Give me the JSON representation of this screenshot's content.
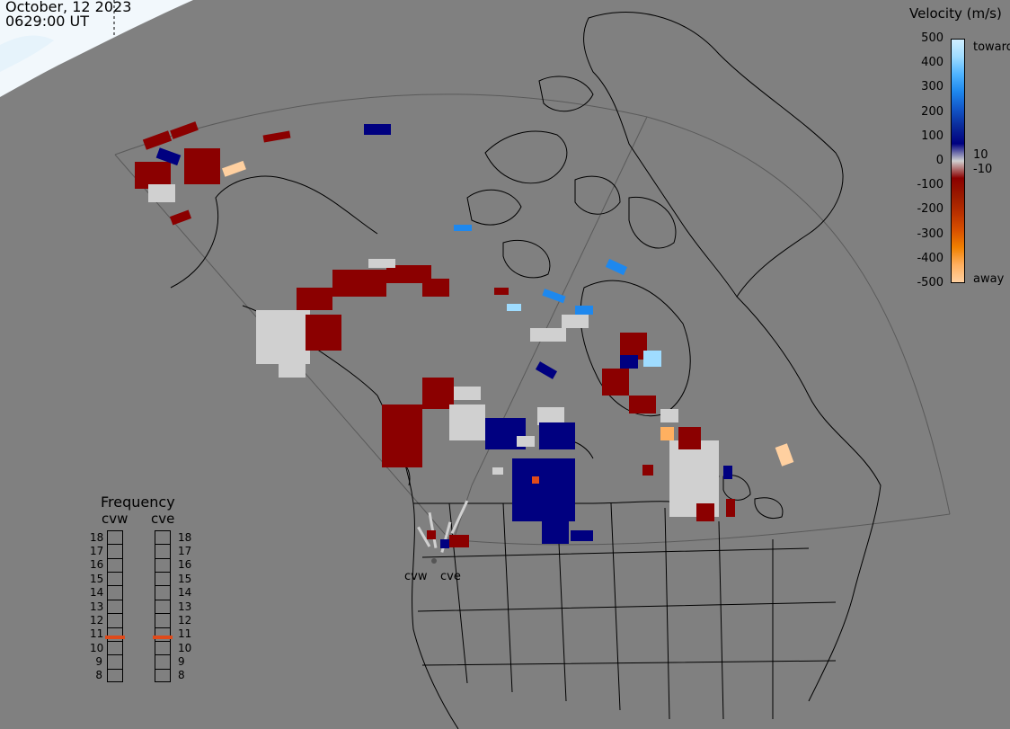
{
  "header": {
    "date": "October, 12 2023",
    "time": "0629:00 UT"
  },
  "velocity_scale": {
    "title": "Velocity (m/s)",
    "ticks": [
      "500",
      "400",
      "300",
      "200",
      "100",
      "0",
      "-100",
      "-200",
      "-300",
      "-400",
      "-500"
    ],
    "pos_threshold": "10",
    "neg_threshold": "-10",
    "toward_label": "toward",
    "away_label": "away",
    "colors": [
      "#cfeeff",
      "#9fdcff",
      "#4fb4ff",
      "#1e88ee",
      "#1256c8",
      "#0a2a9a",
      "#000080",
      "#d0d0d0",
      "#8b0000",
      "#9a1a00",
      "#b83000",
      "#d85000",
      "#f08000",
      "#ffb060",
      "#ffd0a0"
    ]
  },
  "frequency_panel": {
    "title": "Frequency",
    "radars": [
      {
        "name": "cvw",
        "freq_mhz": 10.8
      },
      {
        "name": "cve",
        "freq_mhz": 10.8
      }
    ],
    "ticks": [
      "18",
      "17",
      "16",
      "15",
      "14",
      "13",
      "12",
      "11",
      "10",
      "9",
      "8"
    ],
    "marker_color": "#e04a1a"
  },
  "map_labels": {
    "site_west": "cvw",
    "site_east": "cve"
  }
}
